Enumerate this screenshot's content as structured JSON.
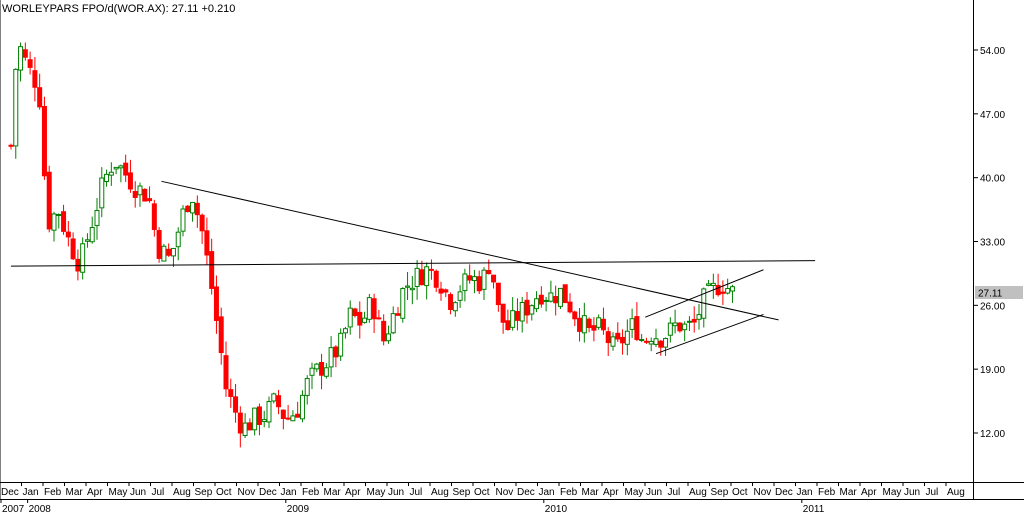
{
  "chart_data": {
    "type": "candlestick",
    "title": "WORLEYPARS FPO/d(WOR.AX): 27.11 +0.210",
    "last_price_label": "27.11",
    "y_ticks": [
      "54.00",
      "47.00",
      "40.00",
      "33.00",
      "26.00",
      "19.00",
      "12.00"
    ],
    "ylim": [
      6.5,
      59.5
    ],
    "month_labels": [
      "Dec",
      "Jan",
      "Feb",
      "Mar",
      "Apr",
      "May",
      "Jun",
      "Jul",
      "Aug",
      "Sep",
      "Oct",
      "Nov",
      "Dec",
      "Jan",
      "Feb",
      "Mar",
      "Apr",
      "May",
      "Jun",
      "Jul",
      "Aug",
      "Sep",
      "Oct",
      "Nov",
      "Dec",
      "Jan",
      "Feb",
      "Mar",
      "Apr",
      "May",
      "Jun",
      "Jul",
      "Aug",
      "Sep",
      "Oct",
      "Nov",
      "Dec",
      "Jan",
      "Feb",
      "Mar",
      "Apr",
      "May",
      "Jun",
      "Jul",
      "Aug"
    ],
    "year_labels": [
      "2007",
      "2008",
      "2009",
      "2010",
      "2011"
    ],
    "colors": {
      "up": "#008000",
      "down": "#ff0000",
      "line": "#000000",
      "grid": "#000000",
      "price_tag": "#c0c0c0"
    },
    "trendlines": [
      {
        "name": "descending-resistance",
        "from": {
          "month": 7.0,
          "price": 39.6
        },
        "to": {
          "month": 35.7,
          "price": 24.4
        }
      },
      {
        "name": "horizontal-support",
        "from": {
          "month": 0.0,
          "price": 30.3
        },
        "to": {
          "month": 37.4,
          "price": 30.9
        }
      },
      {
        "name": "channel-upper",
        "from": {
          "month": 29.5,
          "price": 24.7
        },
        "to": {
          "month": 35.0,
          "price": 29.9
        }
      },
      {
        "name": "channel-lower",
        "from": {
          "month": 30.0,
          "price": 20.7
        },
        "to": {
          "month": 35.0,
          "price": 25.0
        }
      }
    ],
    "anchors": [
      [
        0.0,
        43.5
      ],
      [
        0.3,
        55.0
      ],
      [
        0.8,
        52.0
      ],
      [
        1.3,
        50.0
      ],
      [
        1.7,
        35.0
      ],
      [
        2.2,
        36.5
      ],
      [
        2.7,
        33.0
      ],
      [
        3.2,
        30.5
      ],
      [
        3.7,
        34.5
      ],
      [
        4.3,
        39.5
      ],
      [
        4.8,
        42.0
      ],
      [
        5.3,
        40.5
      ],
      [
        5.8,
        39.0
      ],
      [
        6.4,
        38.0
      ],
      [
        6.8,
        32.5
      ],
      [
        7.4,
        31.0
      ],
      [
        8.0,
        36.0
      ],
      [
        8.4,
        38.5
      ],
      [
        8.9,
        34.0
      ],
      [
        9.3,
        28.5
      ],
      [
        9.7,
        22.0
      ],
      [
        10.0,
        17.0
      ],
      [
        10.4,
        14.5
      ],
      [
        10.8,
        12.5
      ],
      [
        11.3,
        13.5
      ],
      [
        11.8,
        14.0
      ],
      [
        12.3,
        15.5
      ],
      [
        12.8,
        13.5
      ],
      [
        13.3,
        14.5
      ],
      [
        13.8,
        17.5
      ],
      [
        14.3,
        19.0
      ],
      [
        14.8,
        20.0
      ],
      [
        15.3,
        21.5
      ],
      [
        15.8,
        25.0
      ],
      [
        16.3,
        24.0
      ],
      [
        16.8,
        26.5
      ],
      [
        17.3,
        22.0
      ],
      [
        17.8,
        25.0
      ],
      [
        18.3,
        28.0
      ],
      [
        18.8,
        29.0
      ],
      [
        19.4,
        30.0
      ],
      [
        19.9,
        29.0
      ],
      [
        20.4,
        26.5
      ],
      [
        20.9,
        28.0
      ],
      [
        21.4,
        29.0
      ],
      [
        21.9,
        28.5
      ],
      [
        22.3,
        31.0
      ],
      [
        22.7,
        25.0
      ],
      [
        23.1,
        23.5
      ],
      [
        23.6,
        25.0
      ],
      [
        24.1,
        26.0
      ],
      [
        24.6,
        27.5
      ],
      [
        25.1,
        27.0
      ],
      [
        25.6,
        27.5
      ],
      [
        26.0,
        26.0
      ],
      [
        26.4,
        24.5
      ],
      [
        26.9,
        23.0
      ],
      [
        27.3,
        23.5
      ],
      [
        27.7,
        22.5
      ],
      [
        28.1,
        21.0
      ],
      [
        28.5,
        22.5
      ],
      [
        29.0,
        24.0
      ],
      [
        29.4,
        22.0
      ],
      [
        29.8,
        23.0
      ],
      [
        30.2,
        22.5
      ],
      [
        30.6,
        23.0
      ],
      [
        31.0,
        24.0
      ],
      [
        31.4,
        23.5
      ],
      [
        31.8,
        24.0
      ],
      [
        32.2,
        26.5
      ],
      [
        32.6,
        27.5
      ],
      [
        33.0,
        28.5
      ],
      [
        33.4,
        27.8
      ],
      [
        33.7,
        27.1
      ]
    ],
    "bars_per_month": 4.5,
    "x_start_month": -0.35
  }
}
